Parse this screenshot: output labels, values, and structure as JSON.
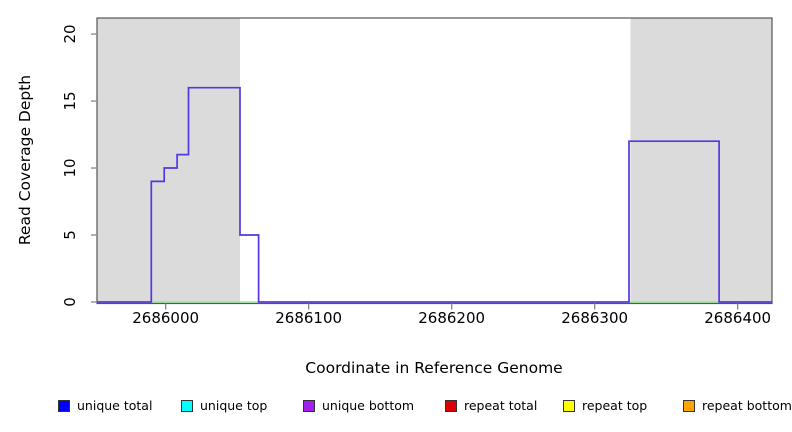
{
  "figure": {
    "xlabel": "Coordinate in Reference Genome",
    "ylabel": "Read Coverage Depth"
  },
  "chart_data": {
    "type": "line",
    "style": "step",
    "title": "",
    "xlabel": "Coordinate in Reference Genome",
    "ylabel": "Read Coverage Depth",
    "xlim": [
      2685952,
      2686424
    ],
    "ylim": [
      0,
      21.2
    ],
    "x_ticks": [
      2686000,
      2686100,
      2686200,
      2686300,
      2686400
    ],
    "y_ticks": [
      0,
      5,
      10,
      15,
      20
    ],
    "grid": false,
    "legend_position": "bottom",
    "shaded_regions": {
      "meaning": "repeat-masked reference regions",
      "color": "#DBDBDB",
      "x_ranges": [
        [
          2685952,
          2686052
        ],
        [
          2686325,
          2686424
        ]
      ]
    },
    "series": [
      {
        "name": "coverage-depth-step-line",
        "color": "#5536E2",
        "points": [
          [
            2685952,
            0
          ],
          [
            2685990,
            0
          ],
          [
            2685990,
            9
          ],
          [
            2685999,
            9
          ],
          [
            2685999,
            10
          ],
          [
            2686008,
            10
          ],
          [
            2686008,
            11
          ],
          [
            2686016,
            11
          ],
          [
            2686016,
            16
          ],
          [
            2686052,
            16
          ],
          [
            2686052,
            5
          ],
          [
            2686065,
            5
          ],
          [
            2686065,
            0
          ],
          [
            2686324,
            0
          ],
          [
            2686324,
            12
          ],
          [
            2686387,
            12
          ],
          [
            2686387,
            0
          ],
          [
            2686424,
            0
          ]
        ]
      },
      {
        "name": "zero-depth-baseline-segments",
        "color": "#90EE90",
        "y": 0,
        "x_segments": [
          [
            2685990,
            2686065
          ],
          [
            2686324,
            2686387
          ]
        ]
      }
    ]
  },
  "legend": {
    "items": [
      {
        "label": "unique total",
        "color": "#0000FF"
      },
      {
        "label": "unique top",
        "color": "#00FFFF"
      },
      {
        "label": "unique bottom",
        "color": "#A020F0"
      },
      {
        "label": "repeat total",
        "color": "#DD0000"
      },
      {
        "label": "repeat top",
        "color": "#FFFF00"
      },
      {
        "label": "repeat bottom",
        "color": "#FFA500"
      }
    ]
  },
  "colors": {
    "background": "#FFFFFF",
    "plot_border": "#555555",
    "tick": "#888888",
    "repeat_region": "#DBDBDB",
    "coverage_line": "#5536E2",
    "zero_baseline": "#90EE90"
  }
}
